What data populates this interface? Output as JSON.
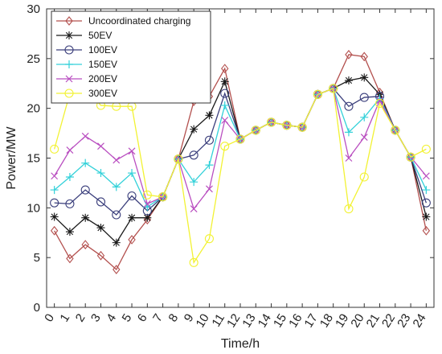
{
  "chart_data": {
    "type": "line",
    "xlabel": "Time/h",
    "ylabel": "Power/MW",
    "ylim": [
      0,
      30
    ],
    "yticks": [
      0,
      5,
      10,
      15,
      20,
      25,
      30
    ],
    "xlim": [
      -0.5,
      24.5
    ],
    "x": [
      0,
      1,
      2,
      3,
      4,
      5,
      6,
      7,
      8,
      9,
      10,
      11,
      12,
      13,
      14,
      15,
      16,
      17,
      18,
      19,
      20,
      21,
      22,
      23,
      24
    ],
    "grid": false,
    "legend_position": "top-left",
    "series": [
      {
        "name": "Uncoordinated charging",
        "color": "#b3504e",
        "marker": "diamond",
        "values": [
          7.7,
          4.9,
          6.3,
          5.2,
          3.8,
          6.8,
          8.8,
          11.1,
          14.9,
          20.7,
          21.2,
          24.0,
          16.9,
          17.8,
          18.6,
          18.3,
          18.1,
          21.4,
          22.0,
          25.4,
          25.2,
          21.6,
          17.8,
          15.1,
          7.7
        ]
      },
      {
        "name": "50EV",
        "color": "#1a1a1a",
        "marker": "asterisk",
        "values": [
          9.1,
          7.6,
          9.0,
          8.0,
          6.5,
          9.0,
          9.0,
          11.1,
          14.9,
          17.9,
          19.3,
          22.7,
          16.9,
          17.8,
          18.6,
          18.3,
          18.1,
          21.4,
          22.0,
          22.8,
          23.1,
          21.4,
          17.8,
          15.1,
          9.1
        ]
      },
      {
        "name": "100EV",
        "color": "#3b3f7c",
        "marker": "circle",
        "values": [
          10.5,
          10.4,
          11.8,
          10.6,
          9.3,
          11.2,
          9.7,
          11.1,
          14.9,
          15.3,
          16.8,
          21.5,
          16.9,
          17.8,
          18.6,
          18.3,
          18.1,
          21.4,
          22.0,
          20.2,
          21.1,
          21.2,
          17.8,
          15.1,
          10.5
        ]
      },
      {
        "name": "150EV",
        "color": "#33d1d9",
        "marker": "plus",
        "values": [
          11.8,
          13.1,
          14.5,
          13.5,
          12.1,
          13.5,
          10.1,
          11.1,
          14.9,
          12.6,
          14.3,
          20.3,
          16.9,
          17.8,
          18.6,
          18.3,
          18.1,
          21.4,
          22.0,
          17.6,
          19.1,
          21.0,
          17.8,
          15.1,
          11.8
        ]
      },
      {
        "name": "200EV",
        "color": "#b94ec0",
        "marker": "x",
        "values": [
          13.2,
          15.8,
          17.2,
          16.2,
          14.8,
          15.7,
          10.4,
          11.1,
          14.9,
          9.9,
          11.9,
          18.8,
          16.9,
          17.8,
          18.6,
          18.3,
          18.1,
          21.4,
          22.0,
          15.0,
          17.1,
          20.8,
          17.8,
          15.1,
          13.2
        ]
      },
      {
        "name": "300EV",
        "color": "#f2f233",
        "marker": "circle",
        "values": [
          15.9,
          21.5,
          22.0,
          20.3,
          20.2,
          20.2,
          11.3,
          11.1,
          14.9,
          4.5,
          6.9,
          16.2,
          16.9,
          17.8,
          18.6,
          18.3,
          18.1,
          21.4,
          22.0,
          9.9,
          13.1,
          20.5,
          17.8,
          15.1,
          15.9
        ]
      }
    ]
  }
}
